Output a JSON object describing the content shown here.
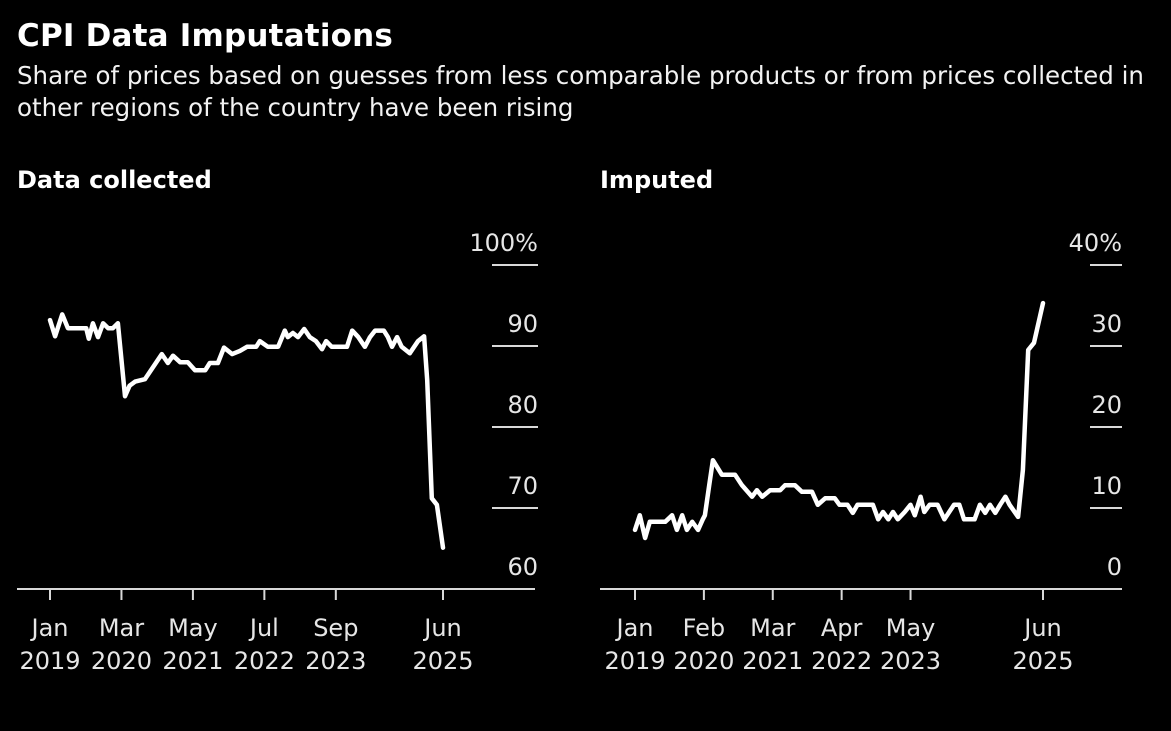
{
  "header": {
    "title": "CPI Data Imputations",
    "subtitle": "Share of prices based on guesses from less comparable products or from prices collected in other regions of the country have been rising"
  },
  "colors": {
    "background": "#000000",
    "line": "#ffffff",
    "axis": "#d9d9d9",
    "text": "#ffffff"
  },
  "chart_data": [
    {
      "type": "line",
      "title": "Data collected",
      "xlabel": "",
      "ylabel": "",
      "x_unit": "months since Jan 2019",
      "xlim": [
        0,
        77
      ],
      "ylim": [
        60,
        100
      ],
      "y_ticks": [
        {
          "value": 100,
          "label": "100%"
        },
        {
          "value": 90,
          "label": "90"
        },
        {
          "value": 80,
          "label": "80"
        },
        {
          "value": 70,
          "label": "70"
        },
        {
          "value": 60,
          "label": "60"
        }
      ],
      "x_ticks": [
        {
          "value": 0,
          "month": "Jan",
          "year": "2019"
        },
        {
          "value": 14,
          "month": "Mar",
          "year": "2020"
        },
        {
          "value": 28,
          "month": "May",
          "year": "2021"
        },
        {
          "value": 42,
          "month": "Jul",
          "year": "2022"
        },
        {
          "value": 56,
          "month": "Sep",
          "year": "2023"
        },
        {
          "value": 77,
          "month": "Jun",
          "year": "2025"
        }
      ],
      "gridlines": true,
      "legend": "none",
      "series": [
        {
          "name": "Data collected",
          "points": [
            [
              0,
              93.2
            ],
            [
              1,
              91.2
            ],
            [
              2.4,
              93.9
            ],
            [
              3.5,
              92.2
            ],
            [
              5.9,
              92.2
            ],
            [
              7.1,
              92.2
            ],
            [
              7.6,
              90.9
            ],
            [
              8.4,
              92.8
            ],
            [
              9.4,
              91.1
            ],
            [
              10.4,
              92.8
            ],
            [
              11.4,
              92.2
            ],
            [
              12.3,
              92.2
            ],
            [
              13.3,
              92.8
            ],
            [
              14.7,
              83.8
            ],
            [
              15.6,
              85.1
            ],
            [
              16.7,
              85.6
            ],
            [
              18.6,
              85.9
            ],
            [
              21.9,
              89.0
            ],
            [
              23.1,
              87.9
            ],
            [
              24.1,
              88.8
            ],
            [
              25.5,
              88.0
            ],
            [
              27.0,
              88.0
            ],
            [
              28.4,
              87.0
            ],
            [
              30.4,
              87.0
            ],
            [
              31.3,
              87.9
            ],
            [
              32.9,
              87.9
            ],
            [
              34.1,
              89.8
            ],
            [
              35.7,
              89.0
            ],
            [
              37.2,
              89.4
            ],
            [
              38.6,
              89.9
            ],
            [
              40.4,
              89.9
            ],
            [
              41.1,
              90.6
            ],
            [
              42.7,
              89.9
            ],
            [
              44.7,
              89.9
            ],
            [
              46.0,
              91.9
            ],
            [
              46.6,
              91.1
            ],
            [
              47.6,
              91.6
            ],
            [
              48.6,
              91.1
            ],
            [
              49.8,
              92.1
            ],
            [
              50.9,
              91.1
            ],
            [
              52.1,
              90.6
            ],
            [
              53.3,
              89.6
            ],
            [
              54.1,
              90.6
            ],
            [
              55.2,
              89.9
            ],
            [
              56.8,
              89.9
            ],
            [
              58.2,
              89.9
            ],
            [
              59.2,
              91.9
            ],
            [
              60.4,
              91.1
            ],
            [
              61.7,
              89.9
            ],
            [
              62.7,
              91.1
            ],
            [
              63.7,
              91.9
            ],
            [
              65.4,
              91.9
            ],
            [
              66.2,
              91.1
            ],
            [
              67.0,
              89.9
            ],
            [
              68.0,
              91.1
            ],
            [
              68.9,
              89.9
            ],
            [
              70.5,
              89.1
            ],
            [
              72.1,
              90.6
            ],
            [
              73.3,
              91.2
            ],
            [
              73.9,
              85.8
            ],
            [
              74.8,
              71.2
            ],
            [
              75.8,
              70.4
            ],
            [
              77,
              65.1
            ]
          ]
        }
      ]
    },
    {
      "type": "line",
      "title": "Imputed",
      "xlabel": "",
      "ylabel": "",
      "x_unit": "months since Jan 2019",
      "xlim": [
        0,
        77
      ],
      "ylim": [
        0,
        40
      ],
      "y_ticks": [
        {
          "value": 40,
          "label": "40%"
        },
        {
          "value": 30,
          "label": "30"
        },
        {
          "value": 20,
          "label": "20"
        },
        {
          "value": 10,
          "label": "10"
        },
        {
          "value": 0,
          "label": "0"
        }
      ],
      "x_ticks": [
        {
          "value": 0,
          "month": "Jan",
          "year": "2019"
        },
        {
          "value": 13,
          "month": "Feb",
          "year": "2020"
        },
        {
          "value": 26,
          "month": "Mar",
          "year": "2021"
        },
        {
          "value": 39,
          "month": "Apr",
          "year": "2022"
        },
        {
          "value": 52,
          "month": "May",
          "year": "2023"
        },
        {
          "value": 77,
          "month": "Jun",
          "year": "2025"
        }
      ],
      "gridlines": true,
      "legend": "none",
      "series": [
        {
          "name": "Imputed",
          "points": [
            [
              0,
              7.3
            ],
            [
              0.9,
              9.1
            ],
            [
              1.9,
              6.3
            ],
            [
              2.8,
              8.3
            ],
            [
              5.7,
              8.3
            ],
            [
              7.0,
              9.1
            ],
            [
              7.9,
              7.3
            ],
            [
              8.9,
              9.1
            ],
            [
              9.8,
              7.3
            ],
            [
              10.8,
              8.3
            ],
            [
              11.9,
              7.3
            ],
            [
              12.8,
              8.6
            ],
            [
              13.2,
              9.1
            ],
            [
              14.0,
              12.8
            ],
            [
              14.7,
              15.9
            ],
            [
              16.4,
              14.1
            ],
            [
              18.9,
              14.1
            ],
            [
              20.2,
              12.8
            ],
            [
              22.1,
              11.4
            ],
            [
              23.0,
              12.2
            ],
            [
              24.0,
              11.4
            ],
            [
              25.5,
              12.2
            ],
            [
              27.4,
              12.2
            ],
            [
              28.3,
              12.8
            ],
            [
              30.2,
              12.8
            ],
            [
              31.5,
              12.0
            ],
            [
              33.4,
              12.0
            ],
            [
              34.5,
              10.4
            ],
            [
              35.9,
              11.2
            ],
            [
              37.7,
              11.2
            ],
            [
              38.6,
              10.4
            ],
            [
              40.1,
              10.4
            ],
            [
              41.1,
              9.4
            ],
            [
              42.0,
              10.4
            ],
            [
              44.9,
              10.4
            ],
            [
              45.9,
              8.6
            ],
            [
              46.8,
              9.5
            ],
            [
              47.8,
              8.6
            ],
            [
              48.7,
              9.5
            ],
            [
              49.6,
              8.6
            ],
            [
              50.9,
              9.5
            ],
            [
              52.0,
              10.4
            ],
            [
              52.8,
              9.1
            ],
            [
              53.9,
              11.4
            ],
            [
              54.6,
              9.5
            ],
            [
              55.6,
              10.4
            ],
            [
              57.1,
              10.4
            ],
            [
              58.4,
              8.6
            ],
            [
              59.3,
              9.5
            ],
            [
              60.2,
              10.4
            ],
            [
              61.2,
              10.4
            ],
            [
              62.1,
              8.6
            ],
            [
              64.1,
              8.6
            ],
            [
              65.1,
              10.4
            ],
            [
              66.1,
              9.4
            ],
            [
              67.0,
              10.4
            ],
            [
              68.0,
              9.4
            ],
            [
              68.9,
              10.4
            ],
            [
              69.9,
              11.4
            ],
            [
              70.7,
              10.4
            ],
            [
              72.3,
              8.9
            ],
            [
              73.2,
              14.7
            ],
            [
              74.2,
              29.5
            ],
            [
              75.3,
              30.4
            ],
            [
              77,
              35.3
            ]
          ]
        }
      ]
    }
  ]
}
